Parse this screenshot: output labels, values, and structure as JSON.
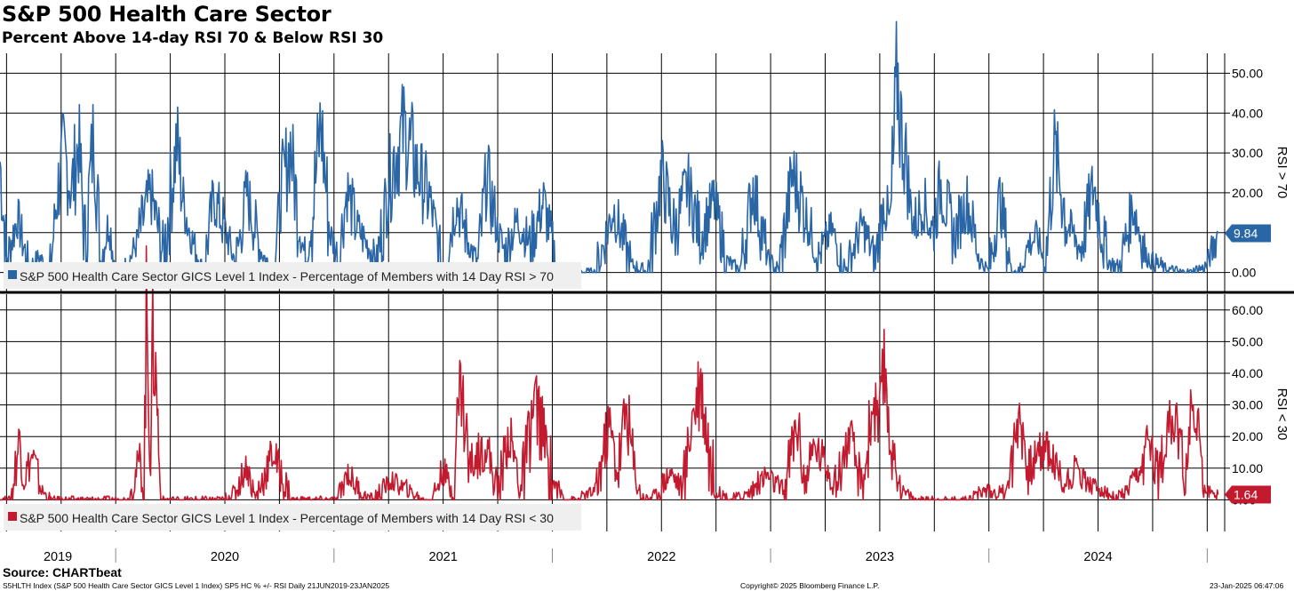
{
  "header": {
    "title": "S&P 500 Health Care Sector",
    "subtitle": "Percent Above 14-day RSI 70 & Below RSI 30"
  },
  "footer": {
    "source": "Source: CHARTbeat",
    "ticker_info": "S5HLTH Index (S&P 500 Health Care Sector GICS Level 1 Index) SP5 HC % +/- RSI  Daily 21JUN2019-23JAN2025",
    "copyright": "Copyright© 2025 Bloomberg Finance L.P.",
    "timestamp": "23-Jan-2025 06:47:06"
  },
  "colors": {
    "upper": "#2a66a6",
    "lower": "#c21a2e",
    "grid": "#000000"
  },
  "x_axis": {
    "years": [
      "2019",
      "2020",
      "2021",
      "2022",
      "2023",
      "2024"
    ],
    "range": [
      "2019-06-21",
      "2025-01-23"
    ]
  },
  "chart_data": [
    {
      "type": "line",
      "title": "RSI > 70",
      "ylabel": "RSI > 70",
      "ylim": [
        -5,
        55
      ],
      "yticks": [
        "0.00",
        "10.00",
        "20.00",
        "30.00",
        "40.00",
        "50.00"
      ],
      "last_value": 9.84,
      "last_label": "9.84",
      "legend": "S&P 500 Health Care Sector GICS Level 1 Index - Percentage of Members with 14 Day RSI > 70",
      "x": [
        2019.47,
        2019.5,
        2019.55,
        2019.6,
        2019.65,
        2019.7,
        2019.73,
        2019.76,
        2019.8,
        2019.83,
        2019.86,
        2019.9,
        2019.93,
        2019.97,
        2020.0,
        2020.04,
        2020.1,
        2020.16,
        2020.22,
        2020.28,
        2020.31,
        2020.34,
        2020.37,
        2020.4,
        2020.45,
        2020.5,
        2020.55,
        2020.6,
        2020.66,
        2020.72,
        2020.76,
        2020.8,
        2020.84,
        2020.87,
        2020.9,
        2020.94,
        2020.98,
        2021.02,
        2021.06,
        2021.1,
        2021.14,
        2021.2,
        2021.26,
        2021.32,
        2021.38,
        2021.44,
        2021.5,
        2021.56,
        2021.62,
        2021.66,
        2021.7,
        2021.74,
        2021.78,
        2021.84,
        2021.9,
        2021.96,
        2022.02,
        2022.08,
        2022.14,
        2022.2,
        2022.28,
        2022.36,
        2022.44,
        2022.5,
        2022.56,
        2022.62,
        2022.68,
        2022.74,
        2022.8,
        2022.86,
        2022.92,
        2022.98,
        2023.04,
        2023.1,
        2023.16,
        2023.22,
        2023.28,
        2023.34,
        2023.42,
        2023.48,
        2023.52,
        2023.55,
        2023.58,
        2023.6,
        2023.62,
        2023.64,
        2023.66,
        2023.7,
        2023.74,
        2023.78,
        2023.84,
        2023.9,
        2023.96,
        2024.0,
        2024.05,
        2024.1,
        2024.14,
        2024.18,
        2024.22,
        2024.26,
        2024.3,
        2024.36,
        2024.42,
        2024.48,
        2024.54,
        2024.6,
        2024.66,
        2024.72,
        2024.8,
        2024.88,
        2024.93,
        2024.96,
        2024.99,
        2025.02,
        2025.05
      ],
      "values": [
        28,
        3,
        14,
        1,
        4,
        0,
        19,
        30,
        21,
        33,
        6,
        36,
        3,
        13,
        0,
        0,
        8,
        20,
        4,
        33,
        18,
        10,
        5,
        0,
        19,
        11,
        2,
        20,
        6,
        0,
        20,
        32,
        12,
        3,
        14,
        38,
        10,
        4,
        21,
        12,
        8,
        3,
        26,
        36,
        26,
        18,
        0,
        18,
        7,
        2,
        25,
        12,
        5,
        13,
        7,
        18,
        1,
        1,
        0,
        0,
        16,
        2,
        0,
        25,
        10,
        22,
        9,
        18,
        3,
        0,
        22,
        4,
        0,
        25,
        15,
        4,
        11,
        0,
        12,
        3,
        18,
        11,
        50,
        35,
        29,
        17,
        12,
        18,
        10,
        22,
        9,
        18,
        3,
        0,
        19,
        1,
        0,
        7,
        9,
        2,
        31,
        12,
        6,
        22,
        3,
        1,
        17,
        4,
        1,
        0,
        0,
        1,
        1,
        5,
        9.84
      ]
    },
    {
      "type": "line",
      "title": "RSI < 30",
      "ylabel": "RSI < 30",
      "ylim": [
        -10,
        65
      ],
      "yticks": [
        "0.00",
        "10.00",
        "20.00",
        "30.00",
        "40.00",
        "50.00",
        "60.00"
      ],
      "last_value": 1.64,
      "last_label": "1.64",
      "legend": "S&P 500 Health Care Sector GICS Level 1 Index - Percentage of Members with 14 Day RSI < 30",
      "x": [
        2019.47,
        2019.52,
        2019.56,
        2019.58,
        2019.62,
        2019.66,
        2019.7,
        2019.76,
        2019.84,
        2019.92,
        2020.0,
        2020.06,
        2020.11,
        2020.13,
        2020.14,
        2020.16,
        2020.17,
        2020.18,
        2020.19,
        2020.2,
        2020.21,
        2020.23,
        2020.26,
        2020.34,
        2020.42,
        2020.5,
        2020.55,
        2020.6,
        2020.64,
        2020.72,
        2020.8,
        2020.88,
        2020.96,
        2021.02,
        2021.06,
        2021.12,
        2021.18,
        2021.26,
        2021.34,
        2021.4,
        2021.45,
        2021.5,
        2021.54,
        2021.58,
        2021.62,
        2021.7,
        2021.75,
        2021.8,
        2021.86,
        2021.92,
        2022.0,
        2022.06,
        2022.12,
        2022.2,
        2022.26,
        2022.3,
        2022.34,
        2022.38,
        2022.42,
        2022.48,
        2022.54,
        2022.6,
        2022.64,
        2022.68,
        2022.74,
        2022.82,
        2022.9,
        2022.98,
        2023.06,
        2023.12,
        2023.16,
        2023.2,
        2023.24,
        2023.3,
        2023.36,
        2023.42,
        2023.47,
        2023.5,
        2023.52,
        2023.56,
        2023.6,
        2023.66,
        2023.74,
        2023.82,
        2023.9,
        2023.98,
        2024.06,
        2024.1,
        2024.14,
        2024.18,
        2024.26,
        2024.34,
        2024.4,
        2024.46,
        2024.52,
        2024.58,
        2024.64,
        2024.7,
        2024.74,
        2024.78,
        2024.82,
        2024.86,
        2024.9,
        2024.94,
        2024.98,
        2025.02,
        2025.05
      ],
      "values": [
        0,
        0,
        20,
        7,
        14,
        3,
        0,
        0,
        0,
        0,
        0,
        0,
        13,
        0,
        60,
        20,
        50,
        42,
        32,
        10,
        0,
        0,
        0,
        0,
        0,
        0,
        3,
        11,
        0,
        15,
        0,
        0,
        0,
        0,
        9,
        2,
        0,
        6,
        3,
        0,
        0,
        10,
        2,
        38,
        11,
        17,
        2,
        21,
        3,
        32,
        6,
        0,
        0,
        3,
        24,
        9,
        30,
        6,
        0,
        2,
        9,
        3,
        27,
        38,
        3,
        0,
        2,
        8,
        2,
        25,
        5,
        17,
        13,
        5,
        20,
        3,
        31,
        20,
        42,
        14,
        3,
        0,
        0,
        0,
        0,
        3,
        2,
        8,
        30,
        9,
        18,
        5,
        10,
        5,
        3,
        0,
        3,
        9,
        20,
        5,
        29,
        22,
        9,
        33,
        3,
        2,
        1.64
      ]
    }
  ]
}
